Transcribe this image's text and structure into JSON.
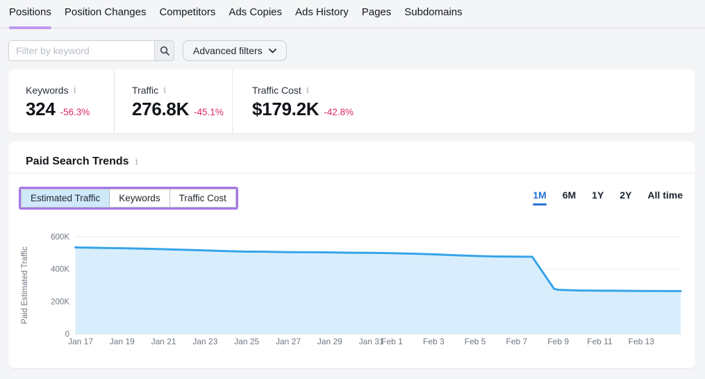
{
  "tabs": {
    "items": [
      {
        "label": "Positions",
        "active": true
      },
      {
        "label": "Position Changes",
        "active": false
      },
      {
        "label": "Competitors",
        "active": false
      },
      {
        "label": "Ads Copies",
        "active": false
      },
      {
        "label": "Ads History",
        "active": false
      },
      {
        "label": "Pages",
        "active": false
      },
      {
        "label": "Subdomains",
        "active": false
      }
    ]
  },
  "filters": {
    "keyword_placeholder": "Filter by keyword",
    "advanced_label": "Advanced filters"
  },
  "icons": {
    "info_glyph": "i"
  },
  "metrics": {
    "items": [
      {
        "label": "Keywords",
        "value": "324",
        "change": "-56.3%"
      },
      {
        "label": "Traffic",
        "value": "276.8K",
        "change": "-45.1%"
      },
      {
        "label": "Traffic Cost",
        "value": "$179.2K",
        "change": "-42.8%"
      }
    ]
  },
  "trends": {
    "title": "Paid Search Trends",
    "views": [
      {
        "label": "Estimated Traffic",
        "active": true
      },
      {
        "label": "Keywords",
        "active": false
      },
      {
        "label": "Traffic Cost",
        "active": false
      }
    ],
    "ranges": [
      {
        "label": "1M",
        "active": true
      },
      {
        "label": "6M",
        "active": false
      },
      {
        "label": "1Y",
        "active": false
      },
      {
        "label": "2Y",
        "active": false
      },
      {
        "label": "All time",
        "active": false
      }
    ]
  },
  "chart_data": {
    "type": "area",
    "title": "Paid Search Trends",
    "xlabel": "",
    "ylabel": "Paid Estimated Traffic",
    "ylim_k": [
      0,
      600
    ],
    "grid": true,
    "y_ticks": [
      {
        "label": "600K",
        "value_k": 600
      },
      {
        "label": "400K",
        "value_k": 400
      },
      {
        "label": "200K",
        "value_k": 200
      },
      {
        "label": "0",
        "value_k": 0
      }
    ],
    "x_ticks": [
      {
        "label": "Jan 17",
        "day": 1
      },
      {
        "label": "Jan 19",
        "day": 3
      },
      {
        "label": "Jan 21",
        "day": 5
      },
      {
        "label": "Jan 23",
        "day": 7
      },
      {
        "label": "Jan 25",
        "day": 9
      },
      {
        "label": "Jan 27",
        "day": 11
      },
      {
        "label": "Jan 29",
        "day": 13
      },
      {
        "label": "Jan 31",
        "day": 15
      },
      {
        "label": "Feb 1",
        "day": 16
      },
      {
        "label": "Feb 3",
        "day": 18
      },
      {
        "label": "Feb 5",
        "day": 20
      },
      {
        "label": "Feb 7",
        "day": 22
      },
      {
        "label": "Feb 9",
        "day": 24
      },
      {
        "label": "Feb 11",
        "day": 26
      },
      {
        "label": "Feb 13",
        "day": 28
      }
    ],
    "day0_date": "Jan 16",
    "series": [
      {
        "name": "Paid Estimated Traffic",
        "points": [
          {
            "day": 0.75,
            "value_k": 534
          },
          {
            "day": 1,
            "date": "Jan 17",
            "value_k": 533
          },
          {
            "day": 2,
            "date": "Jan 18",
            "value_k": 531
          },
          {
            "day": 3,
            "date": "Jan 19",
            "value_k": 529
          },
          {
            "day": 4,
            "date": "Jan 20",
            "value_k": 526
          },
          {
            "day": 5,
            "date": "Jan 21",
            "value_k": 523
          },
          {
            "day": 6,
            "date": "Jan 22",
            "value_k": 519
          },
          {
            "day": 7,
            "date": "Jan 23",
            "value_k": 515
          },
          {
            "day": 8,
            "date": "Jan 24",
            "value_k": 511
          },
          {
            "day": 9,
            "date": "Jan 25",
            "value_k": 508
          },
          {
            "day": 10,
            "date": "Jan 26",
            "value_k": 507
          },
          {
            "day": 11,
            "date": "Jan 27",
            "value_k": 505
          },
          {
            "day": 12,
            "date": "Jan 28",
            "value_k": 504
          },
          {
            "day": 13,
            "date": "Jan 29",
            "value_k": 503
          },
          {
            "day": 14,
            "date": "Jan 30",
            "value_k": 501
          },
          {
            "day": 15,
            "date": "Jan 31",
            "value_k": 500
          },
          {
            "day": 16,
            "date": "Feb 1",
            "value_k": 498
          },
          {
            "day": 17,
            "date": "Feb 2",
            "value_k": 495
          },
          {
            "day": 18,
            "date": "Feb 3",
            "value_k": 491
          },
          {
            "day": 19,
            "date": "Feb 4",
            "value_k": 486
          },
          {
            "day": 20,
            "date": "Feb 5",
            "value_k": 481
          },
          {
            "day": 21,
            "date": "Feb 6",
            "value_k": 478
          },
          {
            "day": 22,
            "date": "Feb 7",
            "value_k": 477
          },
          {
            "day": 22.75,
            "value_k": 476
          },
          {
            "day": 23.8,
            "value_k": 278
          },
          {
            "day": 24,
            "date": "Feb 9",
            "value_k": 272
          },
          {
            "day": 25,
            "date": "Feb 10",
            "value_k": 268
          },
          {
            "day": 26,
            "date": "Feb 11",
            "value_k": 267
          },
          {
            "day": 27,
            "date": "Feb 12",
            "value_k": 266
          },
          {
            "day": 28,
            "date": "Feb 13",
            "value_k": 265
          },
          {
            "day": 29,
            "date": "Feb 14",
            "value_k": 265
          },
          {
            "day": 29.9,
            "value_k": 264
          }
        ]
      }
    ],
    "legend": "none",
    "colors": {
      "line": "#36a4ea",
      "fill": "#d9eefc",
      "grid": "#e9ebee",
      "axis_line": "#c4d3dd",
      "tick_text": "#6e7781"
    }
  },
  "theme_colors": {
    "accent_tab_underline": "#bf9bef",
    "annotation_purple": "#a678e6",
    "active_range_blue": "#2673d2",
    "negative_change": "#e0295f",
    "active_view_bg": "#cfe9fb",
    "page_bg": "#f4f5f7"
  }
}
